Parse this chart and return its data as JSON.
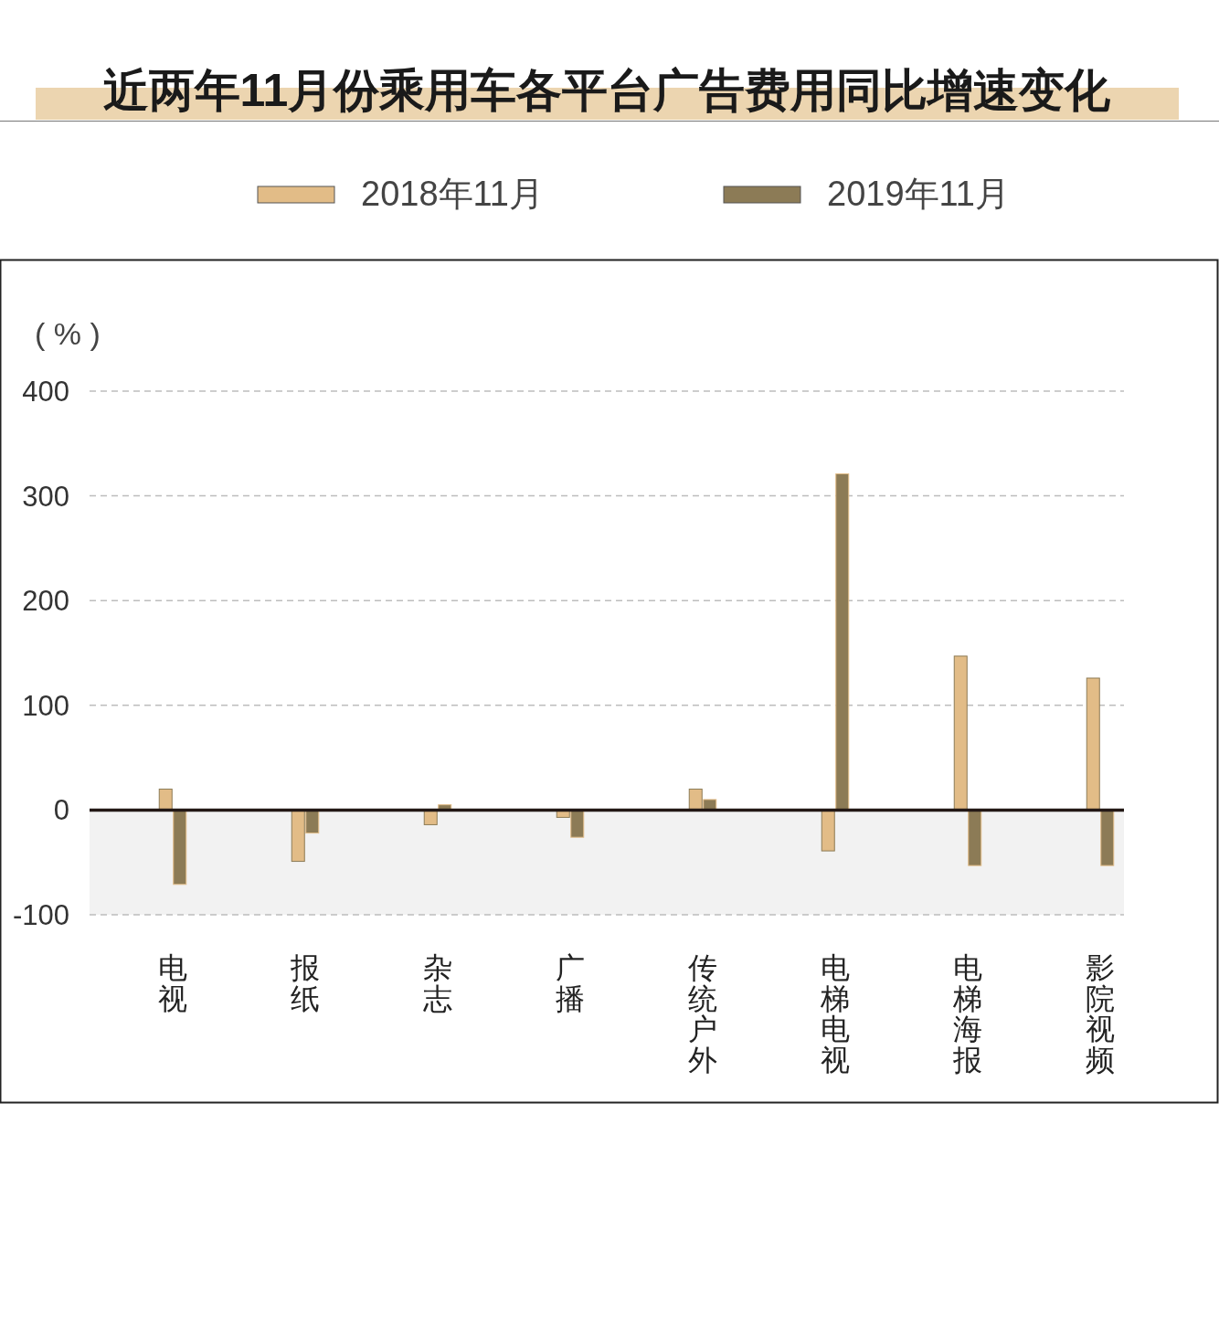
{
  "chart_data": {
    "type": "bar",
    "title": "近两年11月份乘用车各平台广告费用同比增速变化",
    "ylabel": "( % )",
    "categories": [
      "电视",
      "报纸",
      "杂志",
      "广播",
      "传统户外",
      "电梯电视",
      "电梯海报",
      "影院视频"
    ],
    "series": [
      {
        "name": "2018年11月",
        "color": "#e2bc87",
        "values": [
          20,
          -49,
          -14,
          -7,
          20,
          -39,
          147,
          126
        ]
      },
      {
        "name": "2019年11月",
        "color": "#8c7b56",
        "values": [
          -71,
          -22,
          5,
          -26,
          10,
          321,
          -53,
          -53
        ]
      }
    ],
    "ylim": [
      -100,
      400
    ],
    "yticks": [
      -100,
      0,
      100,
      200,
      300,
      400
    ],
    "grid": "y",
    "legend": "top",
    "bands": [
      {
        "axis": "y",
        "from": -100,
        "to": 0,
        "color": "#f2f2f2"
      }
    ]
  }
}
